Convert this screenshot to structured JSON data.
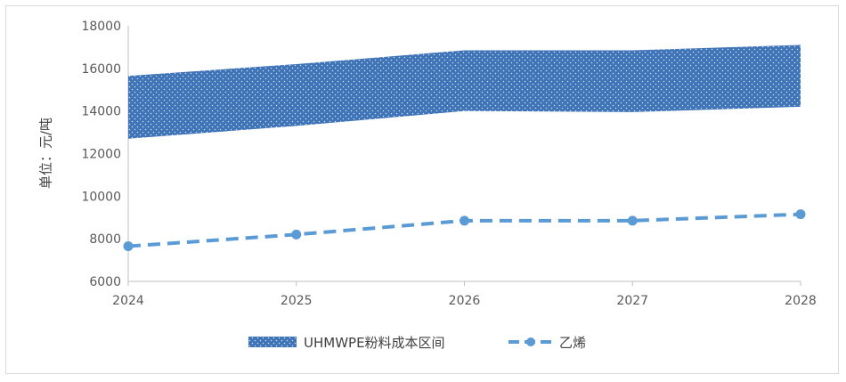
{
  "chart_data": {
    "type": "area",
    "title": "",
    "xlabel": "",
    "ylabel": "单位：元/吨",
    "categories": [
      "2024",
      "2025",
      "2026",
      "2027",
      "2028"
    ],
    "ylim": [
      6000,
      18000
    ],
    "yticks": [
      "6000",
      "8000",
      "10000",
      "12000",
      "14000",
      "16000",
      "18000"
    ],
    "band": {
      "name": "UHMWPE粉料成本区间",
      "lower": [
        12700,
        13300,
        14000,
        13950,
        14200
      ],
      "upper": [
        15650,
        16200,
        16850,
        16850,
        17100
      ],
      "color": "#3f74b8"
    },
    "line": {
      "name": "乙烯",
      "values": [
        7650,
        8200,
        8850,
        8850,
        9150
      ],
      "color": "#5b9bd5"
    },
    "grid": false,
    "legend": "bottom"
  }
}
